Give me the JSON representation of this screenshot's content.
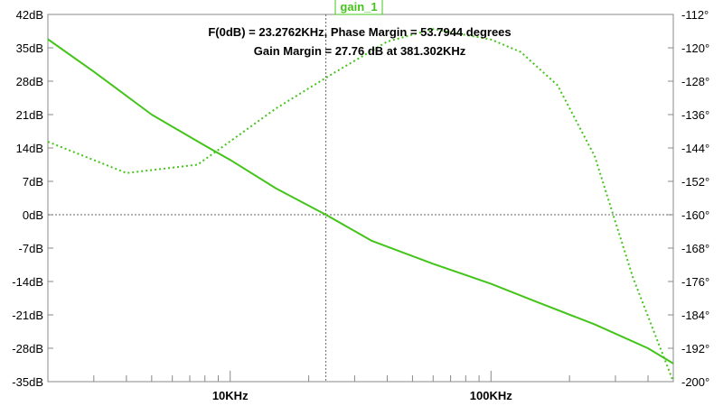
{
  "chart_data": {
    "type": "line",
    "title": "gain_1",
    "x_scale": "log",
    "x_unit": "Hz",
    "xlim": [
      2000,
      500000
    ],
    "x_ticks": [
      {
        "value": 10000,
        "label": "10KHz"
      },
      {
        "value": 100000,
        "label": "100KHz"
      }
    ],
    "y_left": {
      "ylim": [
        -35,
        42
      ],
      "ticks": [
        42,
        35,
        28,
        21,
        14,
        7,
        0,
        -7,
        -14,
        -21,
        -28,
        -35
      ],
      "tick_labels": [
        "42dB",
        "35dB",
        "28dB",
        "21dB",
        "14dB",
        "7dB",
        "0dB",
        "-7dB",
        "-14dB",
        "-21dB",
        "-28dB",
        "-35dB"
      ]
    },
    "y_right": {
      "ylim": [
        -200,
        -112
      ],
      "ticks": [
        -112,
        -120,
        -128,
        -136,
        -144,
        -152,
        -160,
        -168,
        -176,
        -184,
        -192,
        -200
      ],
      "tick_labels": [
        "-112°",
        "-120°",
        "-128°",
        "-136°",
        "-144°",
        "-152°",
        "-160°",
        "-168°",
        "-176°",
        "-184°",
        "-192°",
        "-200°"
      ]
    },
    "series": [
      {
        "name": "gain_1",
        "axis": "left",
        "style": "solid",
        "color": "#44c41a",
        "x": [
          2000,
          3000,
          5000,
          8000,
          10000,
          15000,
          23276,
          35000,
          60000,
          100000,
          150000,
          250000,
          400000,
          500000
        ],
        "y": [
          36.8,
          30,
          21,
          14.5,
          11.5,
          5.5,
          0,
          -5.5,
          -10.3,
          -14.5,
          -18.3,
          -23,
          -28,
          -31.2
        ]
      },
      {
        "name": "",
        "axis": "right",
        "style": "dotted",
        "color": "#44c41a",
        "x": [
          2000,
          4000,
          7500,
          15000,
          25000,
          40000,
          60000,
          100000,
          130000,
          180000,
          250000,
          350000,
          500000
        ],
        "y": [
          -142.5,
          -150,
          -148,
          -134.5,
          -126,
          -118.5,
          -115.5,
          -118,
          -121,
          -129,
          -146,
          -175,
          -200
        ]
      }
    ],
    "annotations": [
      "F(0dB) = 23.2762KHz, Phase Margin = 53.7944 degrees",
      "Gain Margin = 27.76 dB at 381.302KHz"
    ],
    "crossover_hz": 23276,
    "zero_db_reference": 0,
    "grid": false
  }
}
